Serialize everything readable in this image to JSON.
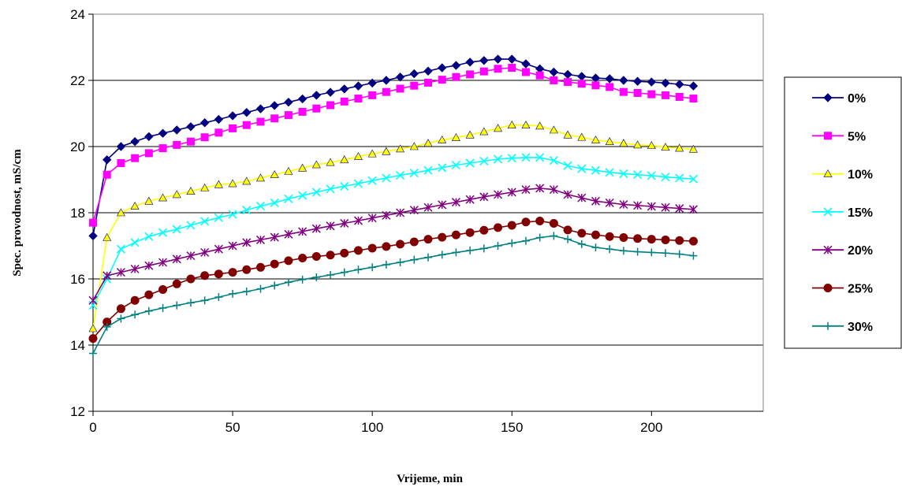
{
  "chart_data": {
    "type": "line",
    "xlabel": "Vrijeme, min",
    "ylabel": "Spec. provodnost, mS/cm",
    "xlim": [
      0,
      240
    ],
    "ylim": [
      12,
      24
    ],
    "x_ticks": [
      0,
      50,
      100,
      150,
      200
    ],
    "y_ticks": [
      12,
      14,
      16,
      18,
      20,
      22,
      24
    ],
    "grid": "horizontal",
    "legend_position": "right",
    "x": [
      0,
      5,
      10,
      15,
      20,
      25,
      30,
      35,
      40,
      45,
      50,
      55,
      60,
      65,
      70,
      75,
      80,
      85,
      90,
      95,
      100,
      105,
      110,
      115,
      120,
      125,
      130,
      135,
      140,
      145,
      150,
      155,
      160,
      165,
      170,
      175,
      180,
      185,
      190,
      195,
      200,
      205,
      210,
      215
    ],
    "series": [
      {
        "name": "0%",
        "color": "#000080",
        "marker": "diamond",
        "values": [
          17.3,
          19.6,
          20.0,
          20.15,
          20.3,
          20.4,
          20.5,
          20.6,
          20.72,
          20.82,
          20.93,
          21.03,
          21.14,
          21.24,
          21.34,
          21.44,
          21.55,
          21.64,
          21.74,
          21.83,
          21.92,
          22.0,
          22.1,
          22.2,
          22.28,
          22.38,
          22.45,
          22.55,
          22.6,
          22.64,
          22.64,
          22.5,
          22.35,
          22.25,
          22.18,
          22.12,
          22.07,
          22.05,
          22.0,
          21.97,
          21.95,
          21.92,
          21.88,
          21.83
        ]
      },
      {
        "name": "5%",
        "color": "#ff00ff",
        "marker": "square",
        "values": [
          17.7,
          19.15,
          19.5,
          19.65,
          19.8,
          19.95,
          20.05,
          20.15,
          20.28,
          20.42,
          20.55,
          20.65,
          20.75,
          20.85,
          20.95,
          21.05,
          21.15,
          21.25,
          21.36,
          21.45,
          21.55,
          21.65,
          21.75,
          21.84,
          21.93,
          22.02,
          22.1,
          22.18,
          22.27,
          22.35,
          22.38,
          22.25,
          22.15,
          22.0,
          21.95,
          21.9,
          21.85,
          21.8,
          21.65,
          21.62,
          21.58,
          21.55,
          21.5,
          21.45
        ]
      },
      {
        "name": "10%",
        "color": "#ffff00",
        "marker": "triangle",
        "values": [
          14.5,
          17.25,
          18.0,
          18.2,
          18.35,
          18.45,
          18.55,
          18.65,
          18.75,
          18.85,
          18.88,
          18.95,
          19.05,
          19.15,
          19.25,
          19.35,
          19.45,
          19.52,
          19.6,
          19.7,
          19.78,
          19.85,
          19.93,
          20.0,
          20.1,
          20.2,
          20.27,
          20.35,
          20.45,
          20.55,
          20.65,
          20.65,
          20.62,
          20.5,
          20.35,
          20.28,
          20.2,
          20.15,
          20.1,
          20.05,
          20.03,
          19.98,
          19.95,
          19.92
        ]
      },
      {
        "name": "15%",
        "color": "#00ffff",
        "marker": "x",
        "values": [
          15.2,
          16.0,
          16.9,
          17.1,
          17.28,
          17.4,
          17.5,
          17.62,
          17.74,
          17.85,
          17.95,
          18.08,
          18.2,
          18.3,
          18.42,
          18.52,
          18.62,
          18.72,
          18.8,
          18.88,
          18.97,
          19.05,
          19.13,
          19.2,
          19.28,
          19.36,
          19.44,
          19.5,
          19.56,
          19.62,
          19.65,
          19.67,
          19.67,
          19.58,
          19.42,
          19.33,
          19.28,
          19.22,
          19.18,
          19.15,
          19.12,
          19.08,
          19.05,
          19.02
        ]
      },
      {
        "name": "20%",
        "color": "#800080",
        "marker": "star",
        "values": [
          15.35,
          16.1,
          16.2,
          16.3,
          16.4,
          16.5,
          16.6,
          16.7,
          16.8,
          16.9,
          17.0,
          17.1,
          17.18,
          17.26,
          17.35,
          17.43,
          17.52,
          17.6,
          17.68,
          17.76,
          17.84,
          17.92,
          18.0,
          18.08,
          18.16,
          18.24,
          18.32,
          18.4,
          18.48,
          18.55,
          18.62,
          18.7,
          18.74,
          18.7,
          18.55,
          18.45,
          18.35,
          18.3,
          18.25,
          18.22,
          18.19,
          18.16,
          18.13,
          18.1
        ]
      },
      {
        "name": "25%",
        "color": "#800000",
        "marker": "circle",
        "values": [
          14.2,
          14.7,
          15.1,
          15.35,
          15.52,
          15.68,
          15.85,
          16.0,
          16.1,
          16.15,
          16.2,
          16.28,
          16.35,
          16.45,
          16.55,
          16.63,
          16.68,
          16.72,
          16.78,
          16.86,
          16.93,
          16.98,
          17.05,
          17.12,
          17.2,
          17.26,
          17.33,
          17.4,
          17.47,
          17.55,
          17.62,
          17.72,
          17.75,
          17.68,
          17.48,
          17.38,
          17.33,
          17.28,
          17.25,
          17.22,
          17.2,
          17.18,
          17.16,
          17.14
        ]
      },
      {
        "name": "30%",
        "color": "#008080",
        "marker": "plus",
        "values": [
          13.75,
          14.55,
          14.8,
          14.92,
          15.03,
          15.12,
          15.2,
          15.28,
          15.35,
          15.45,
          15.55,
          15.62,
          15.7,
          15.8,
          15.9,
          15.98,
          16.05,
          16.12,
          16.2,
          16.28,
          16.35,
          16.43,
          16.5,
          16.58,
          16.65,
          16.73,
          16.8,
          16.86,
          16.92,
          17.0,
          17.08,
          17.15,
          17.25,
          17.3,
          17.2,
          17.05,
          16.95,
          16.9,
          16.85,
          16.82,
          16.8,
          16.78,
          16.75,
          16.7
        ]
      }
    ]
  }
}
